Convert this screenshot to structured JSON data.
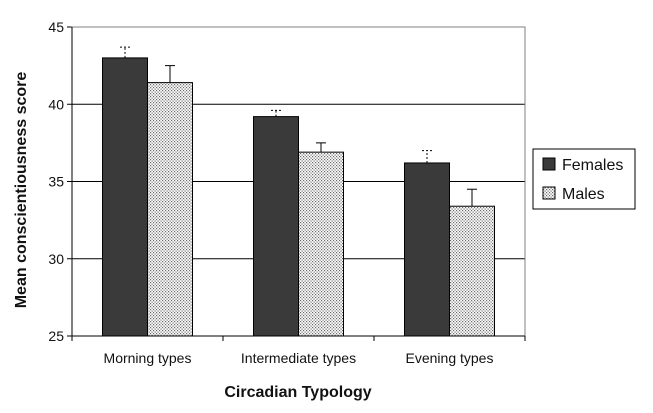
{
  "chart_data": {
    "type": "bar",
    "title": "",
    "xlabel": "Circadian Typology",
    "ylabel": "Mean conscientiousness  score",
    "categories": [
      "Morning types",
      "Intermediate types",
      "Evening types"
    ],
    "ylim": [
      25,
      45
    ],
    "yticks": [
      25,
      30,
      35,
      40,
      45
    ],
    "grid": true,
    "legend_position": "right",
    "series": [
      {
        "name": "Females",
        "values": [
          43.0,
          39.2,
          36.2
        ],
        "errors": [
          0.7,
          0.4,
          0.8
        ],
        "color": "#3a3a3a",
        "pattern": "solid"
      },
      {
        "name": "Males",
        "values": [
          41.4,
          36.9,
          33.4
        ],
        "errors": [
          1.1,
          0.6,
          1.1
        ],
        "color": "#cfcfcf",
        "pattern": "dotted"
      }
    ]
  }
}
